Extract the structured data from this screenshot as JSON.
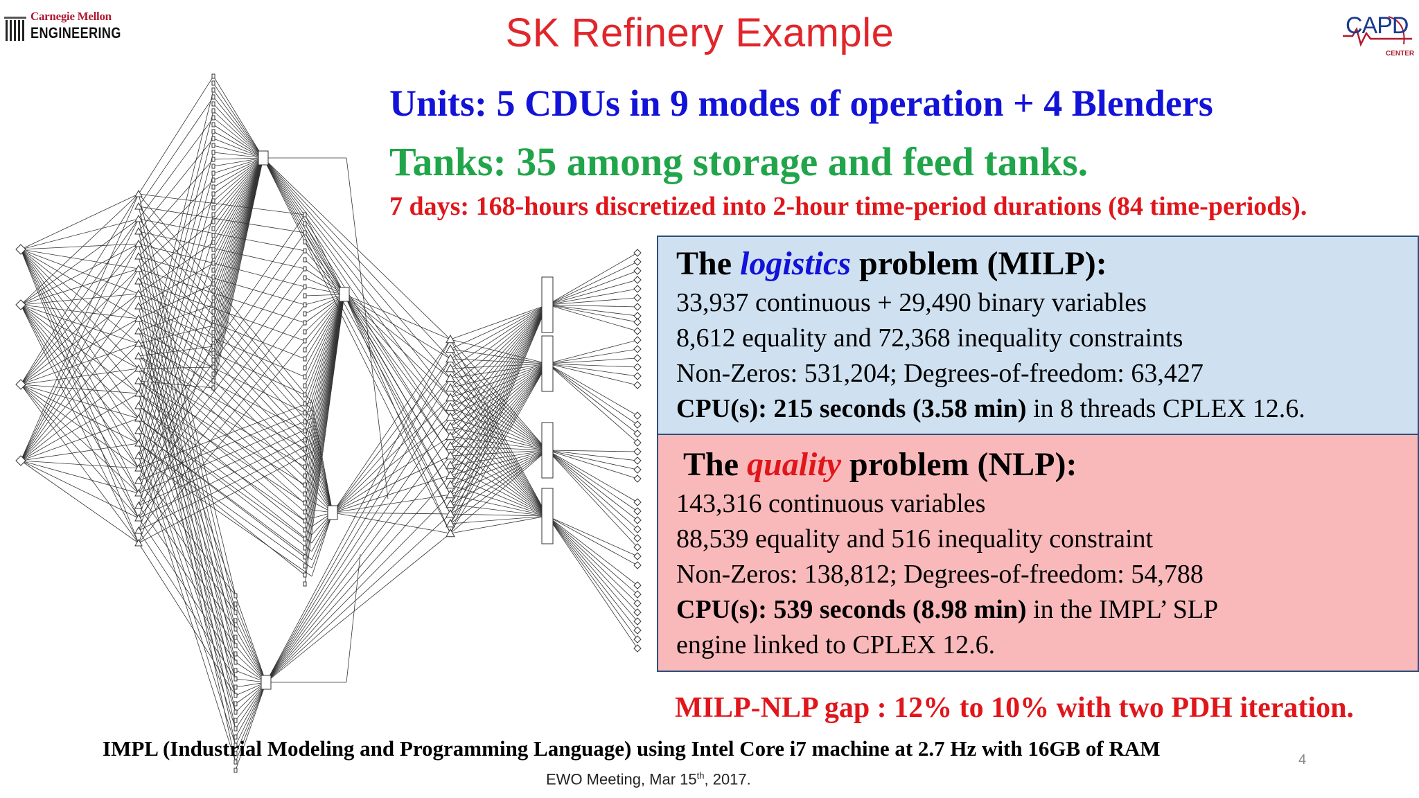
{
  "title": "SK Refinery Example",
  "logos": {
    "cmu_top": "Carnegie Mellon",
    "cmu_bottom": "ENGINEERING",
    "capd": "CAPD",
    "capd_sub": "CENTER"
  },
  "units": {
    "label": "Units:",
    "text": " 5 CDUs in 9 modes of operation + 4 Blenders"
  },
  "tanks": {
    "label": "Tanks:",
    "text": " 35 among storage and feed tanks."
  },
  "horizon": "7 days: 168-hours discretized into 2-hour time-period durations (84 time-periods).",
  "milp": {
    "head_pre": "The ",
    "head_em": "logistics",
    "head_post": " problem (MILP):",
    "line1": "33,937 continuous + 29,490 binary variables",
    "line2": "8,612 equality and 72,368 inequality constraints",
    "line3": "Non-Zeros: 531,204;  Degrees-of-freedom: 63,427",
    "cpu_bold": "CPU(s): 215 seconds (3.58 min)",
    "cpu_rest": " in 8 threads CPLEX 12.6."
  },
  "nlp": {
    "head_pre": "The ",
    "head_em": "quality",
    "head_post": " problem (NLP):",
    "line1": "143,316 continuous variables",
    "line2": "88,539 equality and 516 inequality constraint",
    "line3": "Non-Zeros: 138,812;  Degrees-of-freedom: 54,788",
    "cpu_bold": "CPU(s): 539 seconds (8.98 min)",
    "cpu_rest": " in the IMPL’ SLP",
    "line5": "engine linked to CPLEX 12.6."
  },
  "gap": "MILP-NLP gap : 12% to 10% with two PDH iteration.",
  "impl": "IMPL (Industrial Modeling and Programming Language) using Intel Core i7 machine at 2.7 Hz with 16GB of RAM",
  "page_number": "4",
  "meeting": {
    "pre": "EWO Meeting, Mar 15",
    "sup": "th",
    "post": ", 2017."
  },
  "colors": {
    "title": "#e0262b",
    "units": "#1212d8",
    "tanks": "#21a54a",
    "red_text": "#e0161b",
    "milp_bg": "#cfe1f1",
    "nlp_bg": "#f9b9bb"
  }
}
